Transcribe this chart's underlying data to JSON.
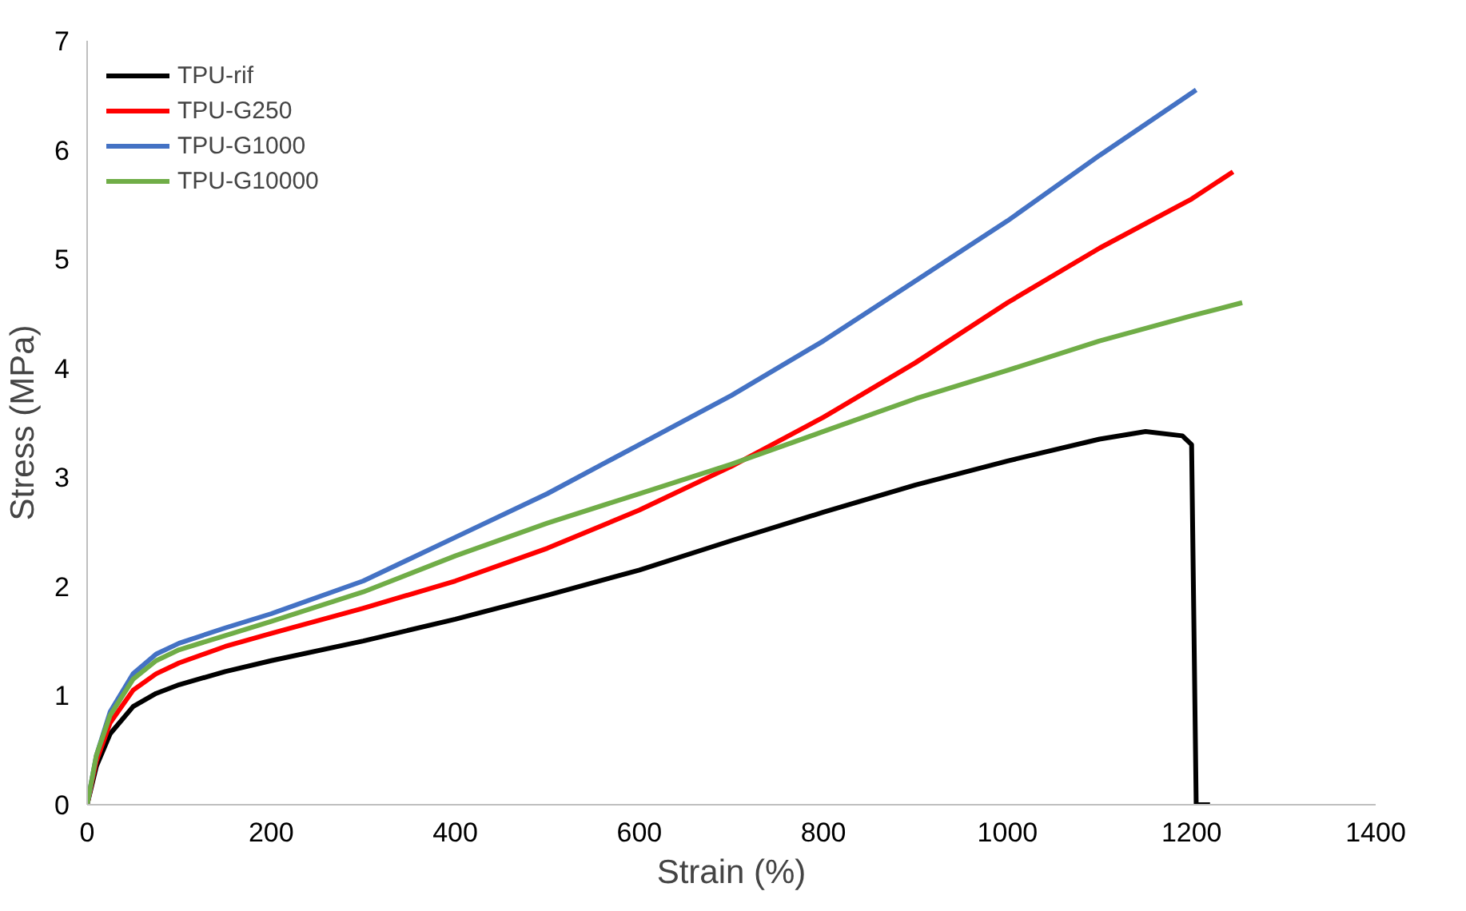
{
  "chart_data": {
    "type": "line",
    "xlabel": "Strain (%)",
    "ylabel": "Stress (MPa)",
    "xlim": [
      0,
      1400
    ],
    "xticks": [
      0,
      200,
      400,
      600,
      800,
      1000,
      1200,
      1400
    ],
    "ylim": [
      0,
      7
    ],
    "yticks": [
      0,
      1,
      2,
      3,
      4,
      5,
      6,
      7
    ],
    "grid": false,
    "legend": "top left",
    "marker": "none",
    "line_style": "solid",
    "series": [
      {
        "name": "TPU-rif",
        "color": "#000000",
        "x": [
          0,
          10,
          25,
          50,
          75,
          100,
          150,
          200,
          300,
          400,
          500,
          600,
          700,
          800,
          900,
          1000,
          1100,
          1150,
          1190,
          1200,
          1205,
          1220
        ],
        "values": [
          0,
          0.35,
          0.65,
          0.9,
          1.02,
          1.1,
          1.22,
          1.32,
          1.5,
          1.7,
          1.92,
          2.15,
          2.42,
          2.68,
          2.93,
          3.15,
          3.35,
          3.42,
          3.38,
          3.3,
          0,
          0
        ]
      },
      {
        "name": "TPU-G250",
        "color": "#ff0000",
        "x": [
          0,
          10,
          25,
          50,
          75,
          100,
          150,
          200,
          300,
          400,
          500,
          600,
          700,
          800,
          900,
          1000,
          1100,
          1200,
          1245
        ],
        "values": [
          0,
          0.4,
          0.75,
          1.05,
          1.2,
          1.3,
          1.45,
          1.57,
          1.8,
          2.05,
          2.35,
          2.7,
          3.1,
          3.55,
          4.05,
          4.6,
          5.1,
          5.55,
          5.8
        ]
      },
      {
        "name": "TPU-G1000",
        "color": "#4472c4",
        "x": [
          0,
          10,
          25,
          50,
          75,
          100,
          150,
          200,
          300,
          400,
          500,
          600,
          700,
          800,
          900,
          1000,
          1100,
          1205
        ],
        "values": [
          0,
          0.45,
          0.85,
          1.2,
          1.38,
          1.48,
          1.62,
          1.75,
          2.05,
          2.45,
          2.85,
          3.3,
          3.75,
          4.25,
          4.8,
          5.35,
          5.95,
          6.55
        ]
      },
      {
        "name": "TPU-G10000",
        "color": "#70ad47",
        "x": [
          0,
          10,
          25,
          50,
          75,
          100,
          150,
          200,
          300,
          400,
          500,
          600,
          700,
          800,
          900,
          1000,
          1100,
          1200,
          1255
        ],
        "values": [
          0,
          0.45,
          0.82,
          1.15,
          1.32,
          1.42,
          1.55,
          1.68,
          1.95,
          2.28,
          2.58,
          2.85,
          3.12,
          3.42,
          3.72,
          3.98,
          4.25,
          4.48,
          4.6
        ]
      }
    ]
  }
}
